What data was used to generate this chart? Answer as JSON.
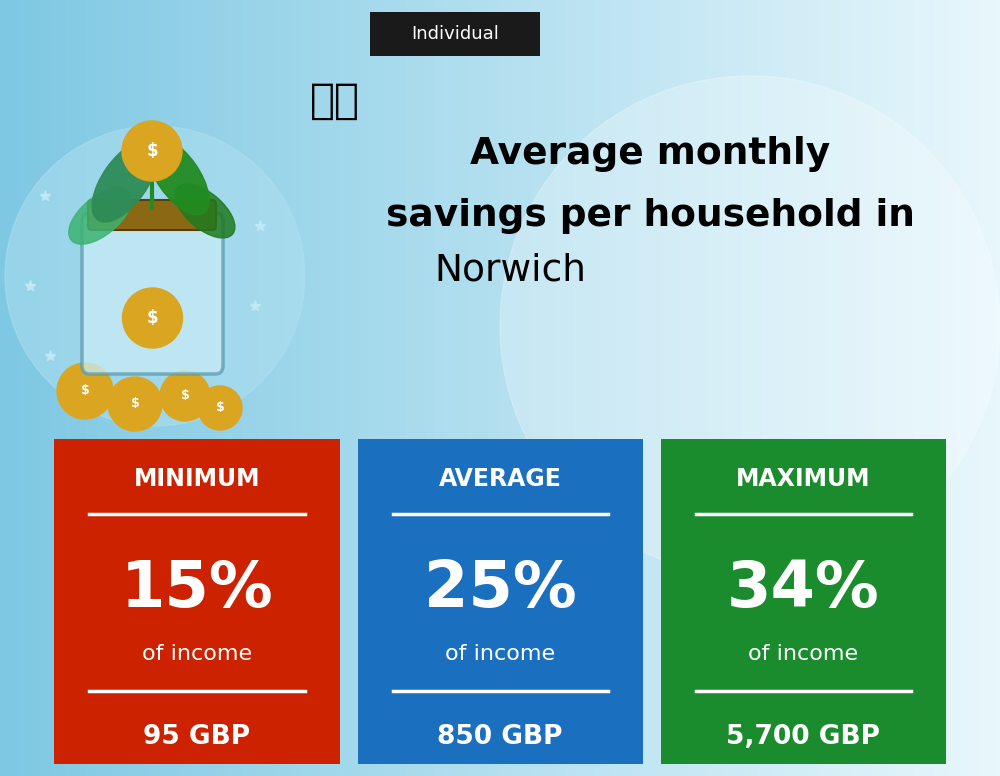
{
  "title_line1": "Average monthly",
  "title_line2": "savings per household in",
  "title_line3": "Norwich",
  "tab_label": "Individual",
  "cards": [
    {
      "label": "MINIMUM",
      "percent": "15%",
      "sub": "of income",
      "amount": "95 GBP",
      "color": "#CC2200"
    },
    {
      "label": "AVERAGE",
      "percent": "25%",
      "sub": "of income",
      "amount": "850 GBP",
      "color": "#1B6FBF"
    },
    {
      "label": "MAXIMUM",
      "percent": "34%",
      "sub": "of income",
      "amount": "5,700 GBP",
      "color": "#1B8C2E"
    }
  ],
  "tab_bg": "#1a1a1a",
  "tab_text_color": "#ffffff",
  "card_text_color": "#ffffff",
  "title_text_color": "#000000",
  "flag_emoji": "🇬🇧",
  "bg_color_left": "#7ec8e3",
  "bg_color_right": "#e8f7fc"
}
